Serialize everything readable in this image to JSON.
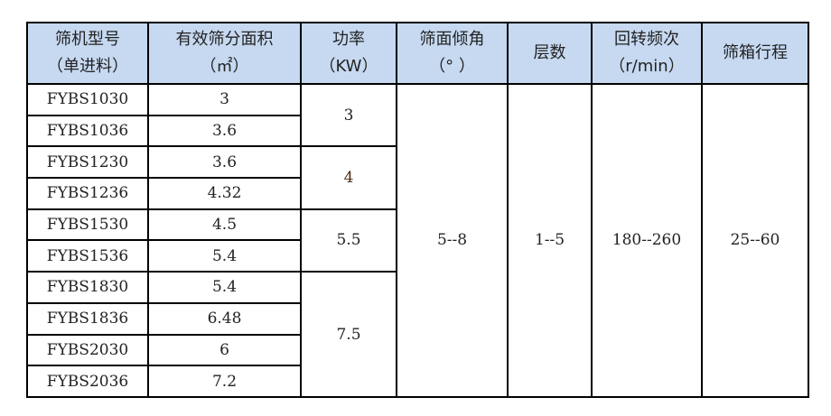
{
  "table": {
    "headers": [
      {
        "line1": "筛机型号",
        "line2": "（单进料）"
      },
      {
        "line1": "有效筛分面积",
        "line2": "（㎡）"
      },
      {
        "line1": "功率",
        "line2": "（KW）"
      },
      {
        "line1": "筛面倾角",
        "line2": "（° ）"
      },
      {
        "line1": "层数",
        "line2": ""
      },
      {
        "line1": "回转频次",
        "line2": "（r/min）"
      },
      {
        "line1": "筛箱行程",
        "line2": ""
      }
    ],
    "rows": [
      {
        "model": "FYBS1030",
        "area": "3"
      },
      {
        "model": "FYBS1036",
        "area": "3.6"
      },
      {
        "model": "FYBS1230",
        "area": "3.6"
      },
      {
        "model": "FYBS1236",
        "area": "4.32"
      },
      {
        "model": "FYBS1530",
        "area": "4.5"
      },
      {
        "model": "FYBS1536",
        "area": "5.4"
      },
      {
        "model": "FYBS1830",
        "area": "5.4"
      },
      {
        "model": "FYBS1836",
        "area": "6.48"
      },
      {
        "model": "FYBS2030",
        "area": "6"
      },
      {
        "model": "FYBS2036",
        "area": "7.2"
      }
    ],
    "power": [
      "3",
      "4",
      "5.5",
      "7.5"
    ],
    "angle": "5--8",
    "layers": "1--5",
    "frequency": "180--260",
    "stroke": "25--60"
  }
}
